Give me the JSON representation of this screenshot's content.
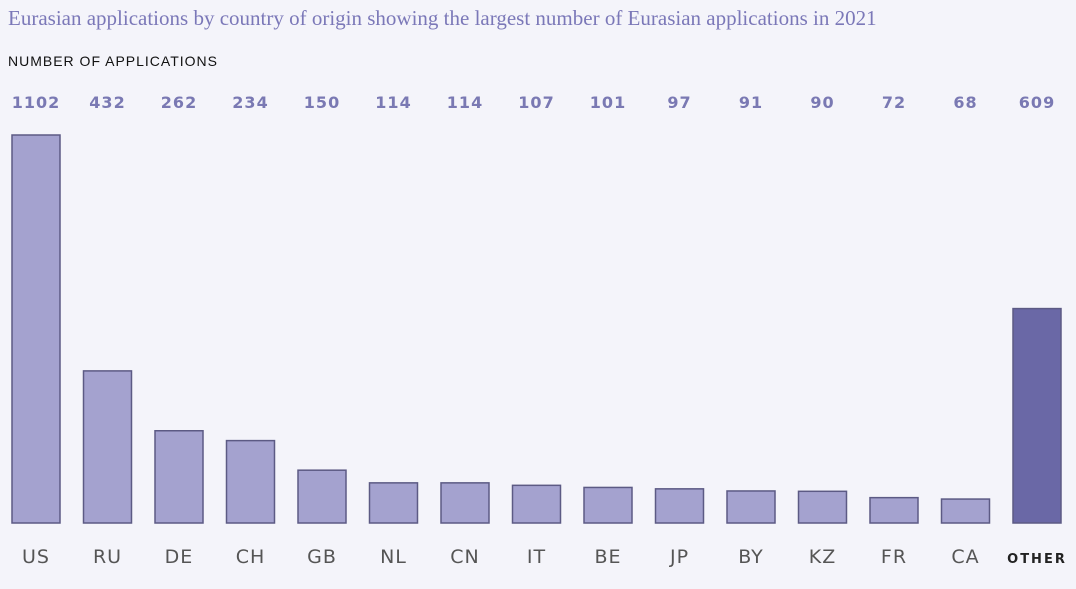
{
  "title": "Eurasian applications by country of origin showing the largest number of Eurasian applications in 2021",
  "colors": {
    "bar": "#a4a2cf",
    "bar_edge": "#5c5a84",
    "bar_highlight": "#6a68a6",
    "value_text": "#7a79b3"
  },
  "chart_data": {
    "type": "bar",
    "title": "Eurasian applications by country of origin showing the largest number of Eurasian applications in 2021",
    "xlabel": "",
    "ylabel": "NUMBER OF APPLICATIONS",
    "categories": [
      "US",
      "RU",
      "DE",
      "CH",
      "GB",
      "NL",
      "CN",
      "IT",
      "BE",
      "JP",
      "BY",
      "KZ",
      "FR",
      "CA",
      "OTHER"
    ],
    "values": [
      1102,
      432,
      262,
      234,
      150,
      114,
      114,
      107,
      101,
      97,
      91,
      90,
      72,
      68,
      609
    ],
    "highlighted": [
      "OTHER"
    ],
    "ylim": [
      0,
      1102
    ],
    "grid": false
  }
}
